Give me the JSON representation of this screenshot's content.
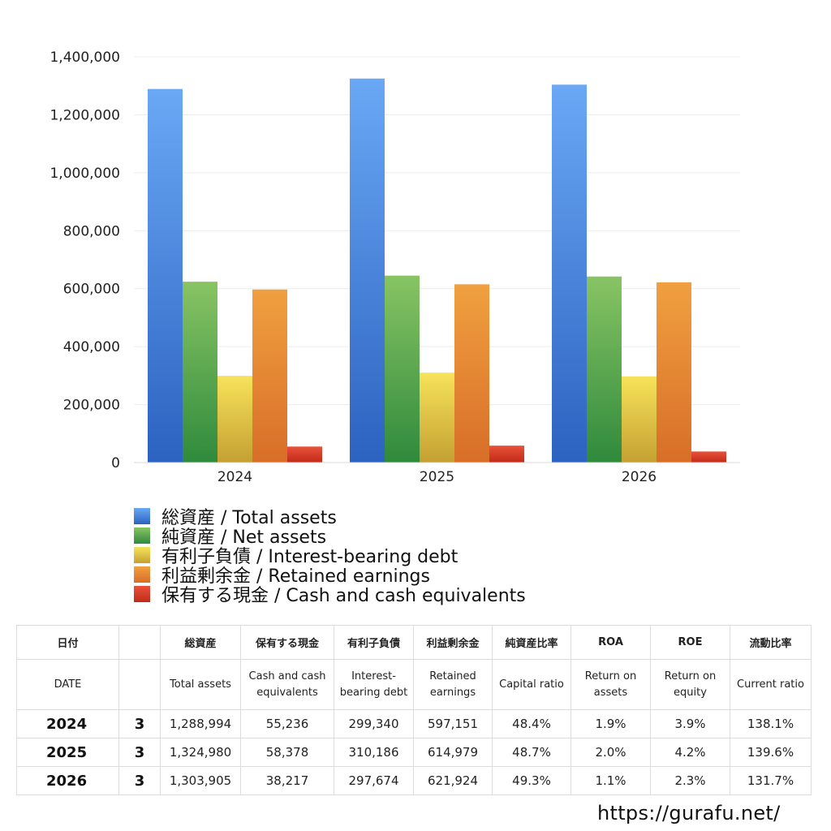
{
  "chart_data": {
    "type": "bar",
    "categories": [
      "2024",
      "2025",
      "2026"
    ],
    "series": [
      {
        "name": "総資産 / Total assets",
        "values": [
          1288994,
          1324980,
          1303905
        ],
        "color_top": "#6aa8f5",
        "color_bottom": "#2c62c0"
      },
      {
        "name": "純資産 / Net assets",
        "values": [
          624000,
          645000,
          642000
        ],
        "color_top": "#88c464",
        "color_bottom": "#2f8a3c"
      },
      {
        "name": "有利子負債 / Interest-bearing debt",
        "values": [
          299340,
          310186,
          297674
        ],
        "color_top": "#f7e35a",
        "color_bottom": "#c4a032"
      },
      {
        "name": "利益剰余金 / Retained earnings",
        "values": [
          597151,
          614979,
          621924
        ],
        "color_top": "#f0a040",
        "color_bottom": "#d86e28"
      },
      {
        "name": "保有する現金 /  Cash and cash equivalents",
        "values": [
          55236,
          58378,
          38217
        ],
        "color_top": "#e8523a",
        "color_bottom": "#c22a18"
      }
    ],
    "yticks": [
      "0",
      "200,000",
      "400,000",
      "600,000",
      "800,000",
      "1,000,000",
      "1,200,000",
      "1,400,000"
    ],
    "ylim": [
      0,
      1400000
    ],
    "grid": true,
    "legend_position": "bottom"
  },
  "table": {
    "headers_jp": [
      "日付",
      "",
      "総資産",
      "保有する現金",
      "有利子負債",
      "利益剰余金",
      "純資産比率",
      "ROA",
      "ROE",
      "流動比率"
    ],
    "headers_en": [
      "DATE",
      "",
      "Total assets",
      "Cash and cash equivalents",
      "Interest-bearing debt",
      "Retained earnings",
      "Capital ratio",
      "Return on assets",
      "Return on equity",
      "Current ratio"
    ],
    "rows": [
      [
        "2024",
        "3",
        "1,288,994",
        "55,236",
        "299,340",
        "597,151",
        "48.4%",
        "1.9%",
        "3.9%",
        "138.1%"
      ],
      [
        "2025",
        "3",
        "1,324,980",
        "58,378",
        "310,186",
        "614,979",
        "48.7%",
        "2.0%",
        "4.2%",
        "139.6%"
      ],
      [
        "2026",
        "3",
        "1,303,905",
        "38,217",
        "297,674",
        "621,924",
        "49.3%",
        "1.1%",
        "2.3%",
        "131.7%"
      ]
    ]
  },
  "footer": {
    "url": "https://gurafu.net/"
  }
}
